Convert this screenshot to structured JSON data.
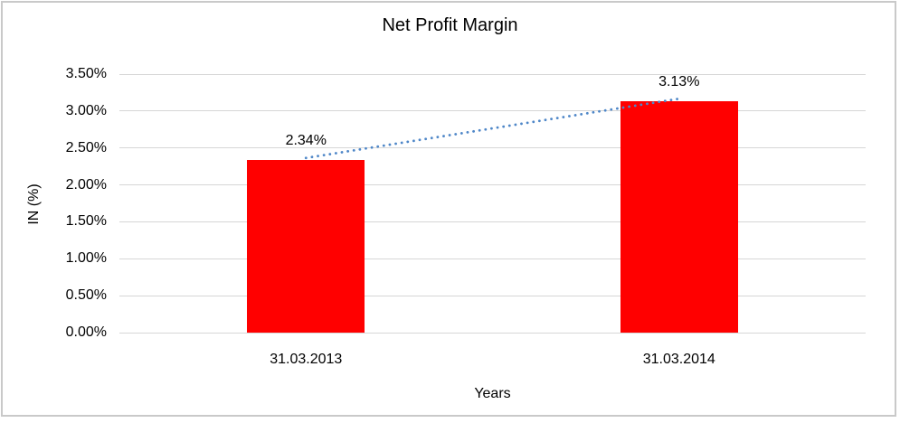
{
  "chart_data": {
    "type": "bar",
    "title": "Net Profit Margin",
    "categories": [
      "31.03.2013",
      "31.03.2014"
    ],
    "values": [
      2.34,
      3.13
    ],
    "data_labels": [
      "2.34%",
      "3.13%"
    ],
    "xlabel": "Years",
    "ylabel": "IN (%)",
    "ylim": [
      0,
      3.5
    ],
    "ytick_step": 0.5,
    "ytick_labels": [
      "0.00%",
      "0.50%",
      "1.00%",
      "1.50%",
      "2.00%",
      "2.50%",
      "3.00%",
      "3.50%"
    ],
    "grid": true,
    "legend_position": "none",
    "bar_color": "#ff0000",
    "trendline": {
      "type": "linear",
      "style": "dotted",
      "color": "#4f87c8"
    }
  }
}
